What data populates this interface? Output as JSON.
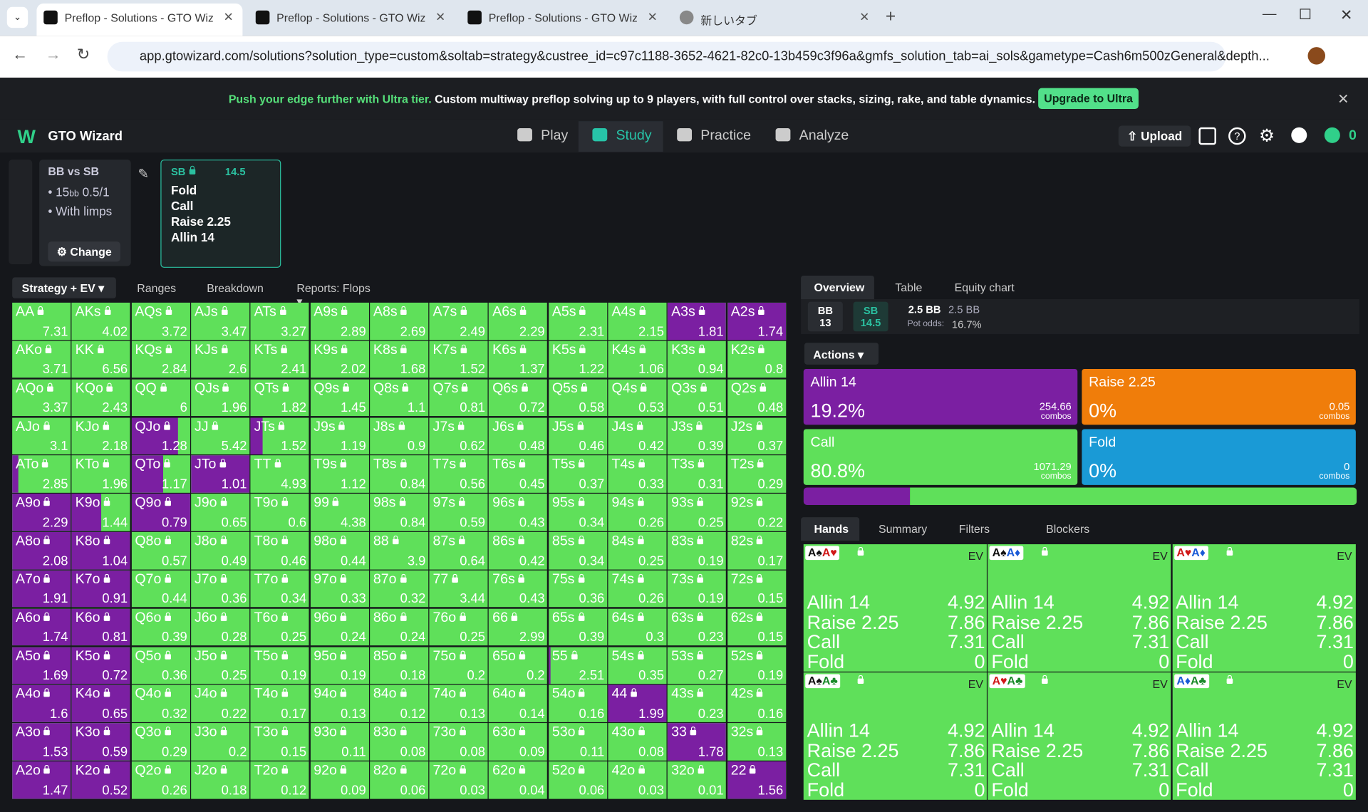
{
  "browser": {
    "tabs": [
      "Preflop - Solutions - GTO Wizar",
      "Preflop - Solutions - GTO Wizar",
      "Preflop - Solutions - GTO Wizar",
      "新しいタブ"
    ],
    "url": "app.gtowizard.com/solutions?solution_type=custom&soltab=strategy&custree_id=c97c1188-3652-4621-82c0-13b459c3f96a&gmfs_solution_tab=ai_sols&gametype=Cash6m500zGeneral&depth..."
  },
  "banner": {
    "highlight": "Push your edge further with Ultra tier.",
    "text": "Custom multiway preflop solving up to 9 players, with full control over stacks, sizing, rake, and table dynamics.",
    "button": "Upgrade to Ultra"
  },
  "nav": {
    "brand": "GTO Wizard",
    "items": [
      "Play",
      "Study",
      "Practice",
      "Analyze"
    ],
    "upload": "Upload",
    "coins": "0"
  },
  "spot": {
    "title": "BB vs SB",
    "stack": "15",
    "stack_unit": "bb",
    "blinds": "0.5/1",
    "limps": "With limps",
    "button": "Change"
  },
  "node": {
    "position": "SB",
    "stack": "14.5",
    "actions": [
      "Fold",
      "Call",
      "Raise 2.25",
      "Allin 14"
    ]
  },
  "toolbar": {
    "mode": "Strategy + EV",
    "tabs": [
      "Ranges",
      "Breakdown",
      "Reports: Flops"
    ]
  },
  "grid": {
    "rows": [
      [
        [
          "AA",
          7.31,
          0
        ],
        [
          "AKs",
          4.02,
          0
        ],
        [
          "AQs",
          3.72,
          0
        ],
        [
          "AJs",
          3.47,
          0
        ],
        [
          "ATs",
          3.27,
          0
        ],
        [
          "A9s",
          2.89,
          0
        ],
        [
          "A8s",
          2.69,
          0
        ],
        [
          "A7s",
          2.49,
          0
        ],
        [
          "A6s",
          2.29,
          0
        ],
        [
          "A5s",
          2.31,
          0
        ],
        [
          "A4s",
          2.15,
          0
        ],
        [
          "A3s",
          1.81,
          100
        ],
        [
          "A2s",
          1.74,
          100
        ]
      ],
      [
        [
          "AKo",
          3.71,
          0
        ],
        [
          "KK",
          6.56,
          0
        ],
        [
          "KQs",
          2.84,
          0
        ],
        [
          "KJs",
          2.6,
          0
        ],
        [
          "KTs",
          2.41,
          0
        ],
        [
          "K9s",
          2.02,
          0
        ],
        [
          "K8s",
          1.68,
          0
        ],
        [
          "K7s",
          1.52,
          0
        ],
        [
          "K6s",
          1.37,
          0
        ],
        [
          "K5s",
          1.22,
          0
        ],
        [
          "K4s",
          1.06,
          0
        ],
        [
          "K3s",
          0.94,
          0
        ],
        [
          "K2s",
          0.8,
          0
        ]
      ],
      [
        [
          "AQo",
          3.37,
          0
        ],
        [
          "KQo",
          2.43,
          0
        ],
        [
          "QQ",
          6,
          0
        ],
        [
          "QJs",
          1.96,
          0
        ],
        [
          "QTs",
          1.82,
          0
        ],
        [
          "Q9s",
          1.45,
          0
        ],
        [
          "Q8s",
          1.1,
          0
        ],
        [
          "Q7s",
          0.81,
          0
        ],
        [
          "Q6s",
          0.72,
          0
        ],
        [
          "Q5s",
          0.58,
          0
        ],
        [
          "Q4s",
          0.53,
          0
        ],
        [
          "Q3s",
          0.51,
          0
        ],
        [
          "Q2s",
          0.48,
          0
        ]
      ],
      [
        [
          "AJo",
          3.1,
          0
        ],
        [
          "KJo",
          2.18,
          0
        ],
        [
          "QJo",
          1.28,
          80
        ],
        [
          "JJ",
          5.42,
          0
        ],
        [
          "JTs",
          1.52,
          20
        ],
        [
          "J9s",
          1.19,
          0
        ],
        [
          "J8s",
          0.9,
          0
        ],
        [
          "J7s",
          0.62,
          0
        ],
        [
          "J6s",
          0.48,
          0
        ],
        [
          "J5s",
          0.46,
          0
        ],
        [
          "J4s",
          0.42,
          0
        ],
        [
          "J3s",
          0.39,
          0
        ],
        [
          "J2s",
          0.37,
          0
        ]
      ],
      [
        [
          "ATo",
          2.85,
          10
        ],
        [
          "KTo",
          1.96,
          0
        ],
        [
          "QTo",
          1.17,
          55
        ],
        [
          "JTo",
          1.01,
          100
        ],
        [
          "TT",
          4.93,
          0
        ],
        [
          "T9s",
          1.12,
          0
        ],
        [
          "T8s",
          0.84,
          0
        ],
        [
          "T7s",
          0.56,
          0
        ],
        [
          "T6s",
          0.45,
          0
        ],
        [
          "T5s",
          0.37,
          0
        ],
        [
          "T4s",
          0.33,
          0
        ],
        [
          "T3s",
          0.31,
          0
        ],
        [
          "T2s",
          0.29,
          0
        ]
      ],
      [
        [
          "A9o",
          2.29,
          100
        ],
        [
          "K9o",
          1.44,
          50
        ],
        [
          "Q9o",
          0.79,
          100
        ],
        [
          "J9o",
          0.65,
          0
        ],
        [
          "T9o",
          0.6,
          0
        ],
        [
          "99",
          4.38,
          0
        ],
        [
          "98s",
          0.84,
          0
        ],
        [
          "97s",
          0.59,
          0
        ],
        [
          "96s",
          0.43,
          0
        ],
        [
          "95s",
          0.34,
          0
        ],
        [
          "94s",
          0.26,
          0
        ],
        [
          "93s",
          0.25,
          0
        ],
        [
          "92s",
          0.22,
          0
        ]
      ],
      [
        [
          "A8o",
          2.08,
          100
        ],
        [
          "K8o",
          1.04,
          100
        ],
        [
          "Q8o",
          0.57,
          0
        ],
        [
          "J8o",
          0.49,
          0
        ],
        [
          "T8o",
          0.46,
          0
        ],
        [
          "98o",
          0.44,
          0
        ],
        [
          "88",
          3.9,
          0
        ],
        [
          "87s",
          0.64,
          0
        ],
        [
          "86s",
          0.42,
          0
        ],
        [
          "85s",
          0.34,
          0
        ],
        [
          "84s",
          0.25,
          0
        ],
        [
          "83s",
          0.19,
          0
        ],
        [
          "82s",
          0.17,
          0
        ]
      ],
      [
        [
          "A7o",
          1.91,
          100
        ],
        [
          "K7o",
          0.91,
          100
        ],
        [
          "Q7o",
          0.44,
          0
        ],
        [
          "J7o",
          0.36,
          0
        ],
        [
          "T7o",
          0.34,
          0
        ],
        [
          "97o",
          0.33,
          0
        ],
        [
          "87o",
          0.32,
          0
        ],
        [
          "77",
          3.44,
          0
        ],
        [
          "76s",
          0.43,
          0
        ],
        [
          "75s",
          0.36,
          0
        ],
        [
          "74s",
          0.26,
          0
        ],
        [
          "73s",
          0.19,
          0
        ],
        [
          "72s",
          0.15,
          0
        ]
      ],
      [
        [
          "A6o",
          1.74,
          100
        ],
        [
          "K6o",
          0.81,
          100
        ],
        [
          "Q6o",
          0.39,
          0
        ],
        [
          "J6o",
          0.28,
          0
        ],
        [
          "T6o",
          0.25,
          0
        ],
        [
          "96o",
          0.24,
          0
        ],
        [
          "86o",
          0.24,
          0
        ],
        [
          "76o",
          0.25,
          0
        ],
        [
          "66",
          2.99,
          0
        ],
        [
          "65s",
          0.39,
          0
        ],
        [
          "64s",
          0.3,
          0
        ],
        [
          "63s",
          0.23,
          0
        ],
        [
          "62s",
          0.15,
          0
        ]
      ],
      [
        [
          "A5o",
          1.69,
          100
        ],
        [
          "K5o",
          0.72,
          100
        ],
        [
          "Q5o",
          0.36,
          0
        ],
        [
          "J5o",
          0.25,
          0
        ],
        [
          "T5o",
          0.19,
          0
        ],
        [
          "95o",
          0.19,
          0
        ],
        [
          "85o",
          0.18,
          0
        ],
        [
          "75o",
          0.2,
          0
        ],
        [
          "65o",
          0.2,
          0
        ],
        [
          "55",
          2.51,
          3
        ],
        [
          "54s",
          0.35,
          0
        ],
        [
          "53s",
          0.27,
          0
        ],
        [
          "52s",
          0.19,
          0
        ]
      ],
      [
        [
          "A4o",
          1.6,
          100
        ],
        [
          "K4o",
          0.65,
          100
        ],
        [
          "Q4o",
          0.32,
          0
        ],
        [
          "J4o",
          0.22,
          0
        ],
        [
          "T4o",
          0.17,
          0
        ],
        [
          "94o",
          0.13,
          0
        ],
        [
          "84o",
          0.12,
          0
        ],
        [
          "74o",
          0.13,
          0
        ],
        [
          "64o",
          0.14,
          0
        ],
        [
          "54o",
          0.16,
          0
        ],
        [
          "44",
          1.99,
          100
        ],
        [
          "43s",
          0.23,
          0
        ],
        [
          "42s",
          0.16,
          0
        ]
      ],
      [
        [
          "A3o",
          1.53,
          100
        ],
        [
          "K3o",
          0.59,
          100
        ],
        [
          "Q3o",
          0.29,
          0
        ],
        [
          "J3o",
          0.2,
          0
        ],
        [
          "T3o",
          0.15,
          0
        ],
        [
          "93o",
          0.11,
          0
        ],
        [
          "83o",
          0.08,
          0
        ],
        [
          "73o",
          0.08,
          0
        ],
        [
          "63o",
          0.09,
          0
        ],
        [
          "53o",
          0.11,
          0
        ],
        [
          "43o",
          0.08,
          0
        ],
        [
          "33",
          1.78,
          100
        ],
        [
          "32s",
          0.13,
          0
        ]
      ],
      [
        [
          "A2o",
          1.47,
          100
        ],
        [
          "K2o",
          0.52,
          100
        ],
        [
          "Q2o",
          0.26,
          0
        ],
        [
          "J2o",
          0.18,
          0
        ],
        [
          "T2o",
          0.12,
          0
        ],
        [
          "92o",
          0.09,
          0
        ],
        [
          "82o",
          0.06,
          0
        ],
        [
          "72o",
          0.03,
          0
        ],
        [
          "62o",
          0.04,
          0
        ],
        [
          "52o",
          0.06,
          0
        ],
        [
          "42o",
          0.03,
          0
        ],
        [
          "32o",
          0.01,
          0
        ],
        [
          "22",
          1.56,
          100
        ]
      ]
    ],
    "allin_color": "#7b1fa2",
    "call_color": "#5fe05a"
  },
  "overview": {
    "tabs": [
      "Overview",
      "Table",
      "Equity chart"
    ],
    "players": [
      [
        "BB",
        "13"
      ],
      [
        "SB",
        "14.5"
      ]
    ],
    "pot": "2.5 BB",
    "pot_total": "2.5 BB",
    "pot_odds_label": "Pot odds:",
    "pot_odds": "16.7%",
    "actions_label": "Actions",
    "actions": [
      {
        "name": "Allin 14",
        "freq": {
          "value": 19.2,
          "label": "19.2%"
        },
        "combos": 254.66,
        "unit": "combos",
        "color": "#7b1fa2"
      },
      {
        "name": "Raise 2.25",
        "freq": {
          "value": 0,
          "label": "0%"
        },
        "combos": 0.05,
        "unit": "combos",
        "color": "#f07d0a"
      },
      {
        "name": "Call",
        "freq": {
          "value": 80.8,
          "label": "80.8%"
        },
        "combos": 1071.29,
        "unit": "combos",
        "color": "#5fe05a"
      },
      {
        "name": "Fold",
        "freq": {
          "value": 0,
          "label": "0%"
        },
        "combos": 0,
        "unit": "combos",
        "color": "#1a9ad6"
      }
    ]
  },
  "hands_panel": {
    "tabs": [
      "Hands",
      "Summary",
      "Filters",
      "Blockers"
    ],
    "hands": [
      {
        "cards": [
          "A♠",
          "A♥"
        ],
        "ev_label": "EV",
        "rows": [
          [
            "Allin 14",
            4.92
          ],
          [
            "Raise 2.25",
            7.86
          ],
          [
            "Call",
            7.31
          ],
          [
            "Fold",
            0
          ]
        ]
      },
      {
        "cards": [
          "A♠",
          "A♦"
        ],
        "ev_label": "EV",
        "rows": [
          [
            "Allin 14",
            4.92
          ],
          [
            "Raise 2.25",
            7.86
          ],
          [
            "Call",
            7.31
          ],
          [
            "Fold",
            0
          ]
        ]
      },
      {
        "cards": [
          "A♥",
          "A♦"
        ],
        "ev_label": "EV",
        "rows": [
          [
            "Allin 14",
            4.92
          ],
          [
            "Raise 2.25",
            7.86
          ],
          [
            "Call",
            7.31
          ],
          [
            "Fold",
            0
          ]
        ]
      },
      {
        "cards": [
          "A♠",
          "A♣"
        ],
        "ev_label": "EV",
        "rows": [
          [
            "Allin 14",
            4.92
          ],
          [
            "Raise 2.25",
            7.86
          ],
          [
            "Call",
            7.31
          ],
          [
            "Fold",
            0
          ]
        ]
      },
      {
        "cards": [
          "A♥",
          "A♣"
        ],
        "ev_label": "EV",
        "rows": [
          [
            "Allin 14",
            4.92
          ],
          [
            "Raise 2.25",
            7.86
          ],
          [
            "Call",
            7.31
          ],
          [
            "Fold",
            0
          ]
        ]
      },
      {
        "cards": [
          "A♦",
          "A♣"
        ],
        "ev_label": "EV",
        "rows": [
          [
            "Allin 14",
            4.92
          ],
          [
            "Raise 2.25",
            7.86
          ],
          [
            "Call",
            7.31
          ],
          [
            "Fold",
            0
          ]
        ]
      }
    ]
  }
}
